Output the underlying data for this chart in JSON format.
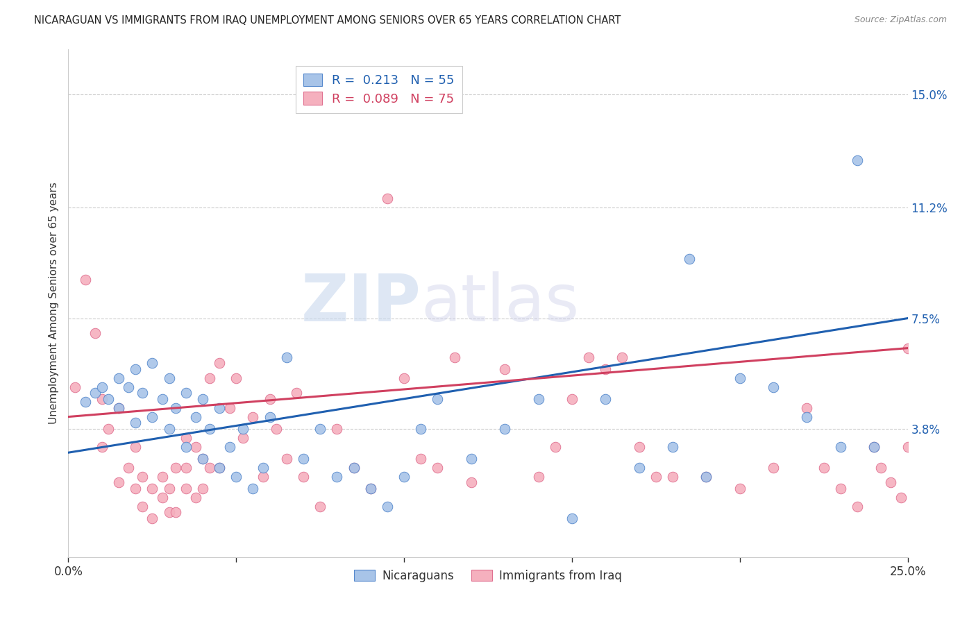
{
  "title": "NICARAGUAN VS IMMIGRANTS FROM IRAQ UNEMPLOYMENT AMONG SENIORS OVER 65 YEARS CORRELATION CHART",
  "source": "Source: ZipAtlas.com",
  "ylabel": "Unemployment Among Seniors over 65 years",
  "xlim": [
    0.0,
    0.25
  ],
  "ylim": [
    -0.005,
    0.165
  ],
  "yticks": [
    0.038,
    0.075,
    0.112,
    0.15
  ],
  "ytick_labels": [
    "3.8%",
    "7.5%",
    "11.2%",
    "15.0%"
  ],
  "xticks": [
    0.0,
    0.05,
    0.1,
    0.15,
    0.2,
    0.25
  ],
  "xtick_labels": [
    "0.0%",
    "",
    "",
    "",
    "",
    "25.0%"
  ],
  "blue_R": 0.213,
  "blue_N": 55,
  "pink_R": 0.089,
  "pink_N": 75,
  "blue_color": "#a8c4e8",
  "pink_color": "#f5b0be",
  "blue_edge_color": "#5588cc",
  "pink_edge_color": "#e07090",
  "blue_line_color": "#2060b0",
  "pink_line_color": "#d04060",
  "background_color": "#ffffff",
  "grid_color": "#cccccc",
  "watermark_zip": "ZIP",
  "watermark_atlas": "atlas",
  "legend_label_blue": "Nicaraguans",
  "legend_label_pink": "Immigrants from Iraq",
  "blue_scatter_x": [
    0.005,
    0.008,
    0.01,
    0.012,
    0.015,
    0.015,
    0.018,
    0.02,
    0.02,
    0.022,
    0.025,
    0.025,
    0.028,
    0.03,
    0.03,
    0.032,
    0.035,
    0.035,
    0.038,
    0.04,
    0.04,
    0.042,
    0.045,
    0.045,
    0.048,
    0.05,
    0.052,
    0.055,
    0.058,
    0.06,
    0.065,
    0.07,
    0.075,
    0.08,
    0.085,
    0.09,
    0.095,
    0.1,
    0.105,
    0.11,
    0.12,
    0.13,
    0.14,
    0.15,
    0.16,
    0.17,
    0.18,
    0.185,
    0.19,
    0.2,
    0.21,
    0.22,
    0.23,
    0.235,
    0.24
  ],
  "blue_scatter_y": [
    0.047,
    0.05,
    0.052,
    0.048,
    0.055,
    0.045,
    0.052,
    0.04,
    0.058,
    0.05,
    0.042,
    0.06,
    0.048,
    0.038,
    0.055,
    0.045,
    0.032,
    0.05,
    0.042,
    0.028,
    0.048,
    0.038,
    0.025,
    0.045,
    0.032,
    0.022,
    0.038,
    0.018,
    0.025,
    0.042,
    0.062,
    0.028,
    0.038,
    0.022,
    0.025,
    0.018,
    0.012,
    0.022,
    0.038,
    0.048,
    0.028,
    0.038,
    0.048,
    0.008,
    0.048,
    0.025,
    0.032,
    0.095,
    0.022,
    0.055,
    0.052,
    0.042,
    0.032,
    0.128,
    0.032
  ],
  "pink_scatter_x": [
    0.002,
    0.005,
    0.008,
    0.01,
    0.01,
    0.012,
    0.015,
    0.015,
    0.018,
    0.02,
    0.02,
    0.022,
    0.022,
    0.025,
    0.025,
    0.028,
    0.028,
    0.03,
    0.03,
    0.032,
    0.032,
    0.035,
    0.035,
    0.035,
    0.038,
    0.038,
    0.04,
    0.04,
    0.042,
    0.042,
    0.045,
    0.045,
    0.048,
    0.05,
    0.052,
    0.055,
    0.058,
    0.06,
    0.062,
    0.065,
    0.068,
    0.07,
    0.075,
    0.08,
    0.085,
    0.09,
    0.095,
    0.1,
    0.105,
    0.11,
    0.115,
    0.12,
    0.13,
    0.14,
    0.145,
    0.15,
    0.155,
    0.16,
    0.165,
    0.17,
    0.175,
    0.18,
    0.19,
    0.2,
    0.21,
    0.22,
    0.225,
    0.23,
    0.235,
    0.24,
    0.242,
    0.245,
    0.248,
    0.25,
    0.25
  ],
  "pink_scatter_y": [
    0.052,
    0.088,
    0.07,
    0.032,
    0.048,
    0.038,
    0.02,
    0.045,
    0.025,
    0.018,
    0.032,
    0.012,
    0.022,
    0.008,
    0.018,
    0.015,
    0.022,
    0.01,
    0.018,
    0.01,
    0.025,
    0.018,
    0.025,
    0.035,
    0.015,
    0.032,
    0.018,
    0.028,
    0.025,
    0.055,
    0.025,
    0.06,
    0.045,
    0.055,
    0.035,
    0.042,
    0.022,
    0.048,
    0.038,
    0.028,
    0.05,
    0.022,
    0.012,
    0.038,
    0.025,
    0.018,
    0.115,
    0.055,
    0.028,
    0.025,
    0.062,
    0.02,
    0.058,
    0.022,
    0.032,
    0.048,
    0.062,
    0.058,
    0.062,
    0.032,
    0.022,
    0.022,
    0.022,
    0.018,
    0.025,
    0.045,
    0.025,
    0.018,
    0.012,
    0.032,
    0.025,
    0.02,
    0.015,
    0.065,
    0.032
  ],
  "blue_line_x0": 0.0,
  "blue_line_y0": 0.03,
  "blue_line_x1": 0.25,
  "blue_line_y1": 0.075,
  "pink_line_x0": 0.0,
  "pink_line_y0": 0.042,
  "pink_line_x1": 0.25,
  "pink_line_y1": 0.065
}
